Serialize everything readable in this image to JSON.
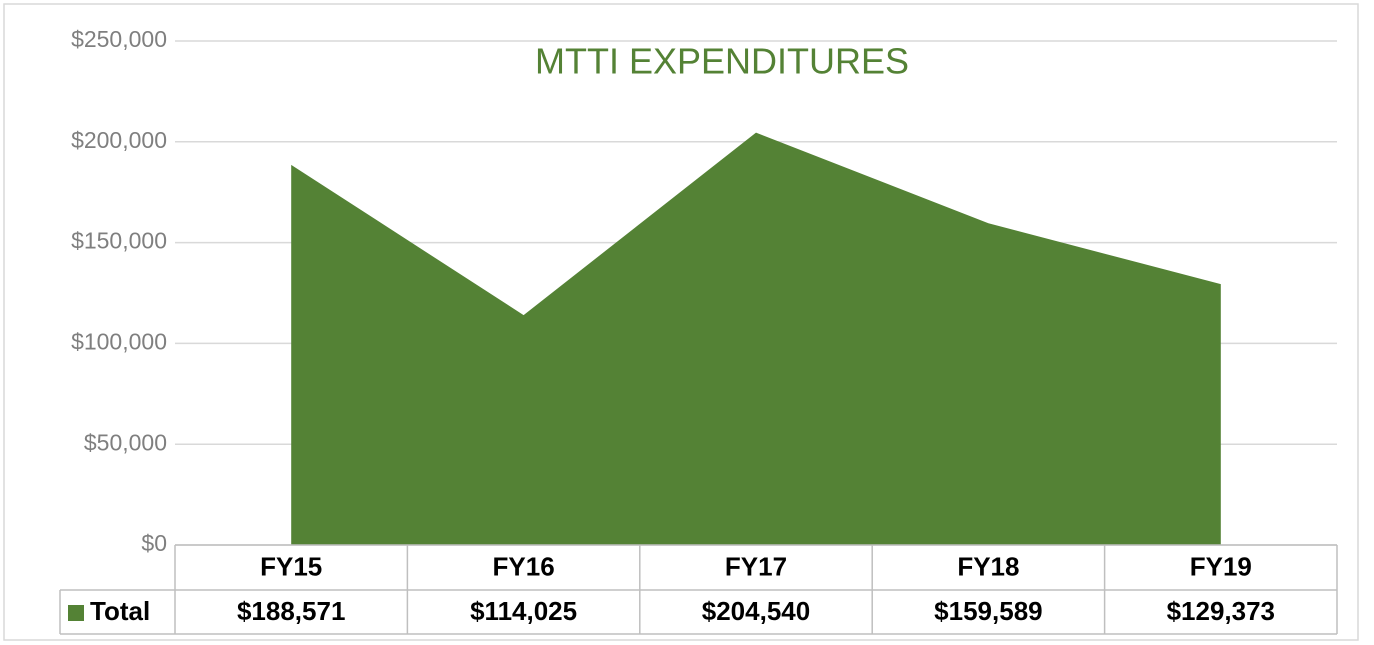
{
  "chart_data": {
    "type": "area",
    "title": "MTTI EXPENDITURES",
    "categories": [
      "FY15",
      "FY16",
      "FY17",
      "FY18",
      "FY19"
    ],
    "series": [
      {
        "name": "Total",
        "color": "#548235",
        "values": [
          188571,
          114025,
          204540,
          159589,
          129373
        ],
        "value_labels": [
          "$188,571",
          "$114,025",
          "$204,540",
          "$159,589",
          "$129,373"
        ]
      }
    ],
    "ylim": [
      0,
      250000
    ],
    "yticks": [
      {
        "value": 0,
        "label": "$0"
      },
      {
        "value": 50000,
        "label": "$50,000"
      },
      {
        "value": 100000,
        "label": "$100,000"
      },
      {
        "value": 150000,
        "label": "$150,000"
      },
      {
        "value": 200000,
        "label": "$200,000"
      },
      {
        "value": 250000,
        "label": "$250,000"
      }
    ],
    "grid": true
  }
}
